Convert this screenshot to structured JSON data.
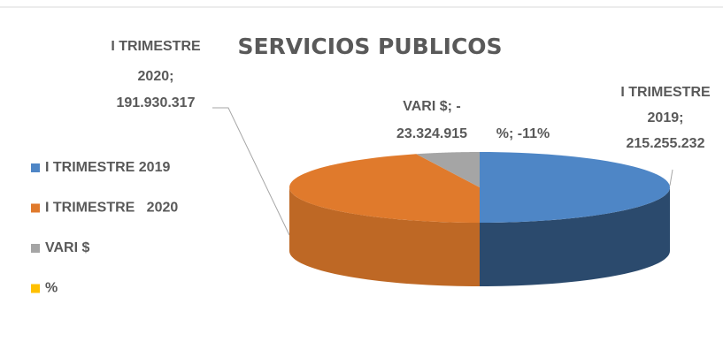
{
  "chart_data": {
    "type": "pie3d",
    "title": "SERVICIOS PUBLICOS",
    "categories": [
      "I TRIMESTRE 2019",
      "I TRIMESTRE   2020",
      "VARI $",
      "%"
    ],
    "values": [
      215255232,
      191930317,
      -23324915,
      -11
    ],
    "value_labels": [
      [
        "I TRIMESTRE",
        "2019;",
        "215.255.232"
      ],
      [
        "I TRIMESTRE",
        "2020;",
        "191.930.317"
      ],
      [
        "VARI $; -",
        "23.324.915"
      ],
      [
        "%; -11%"
      ]
    ],
    "colors": [
      "#4e86c6",
      "#e07a2c",
      "#a5a5a5",
      "#ffc000"
    ],
    "legend": "left"
  }
}
